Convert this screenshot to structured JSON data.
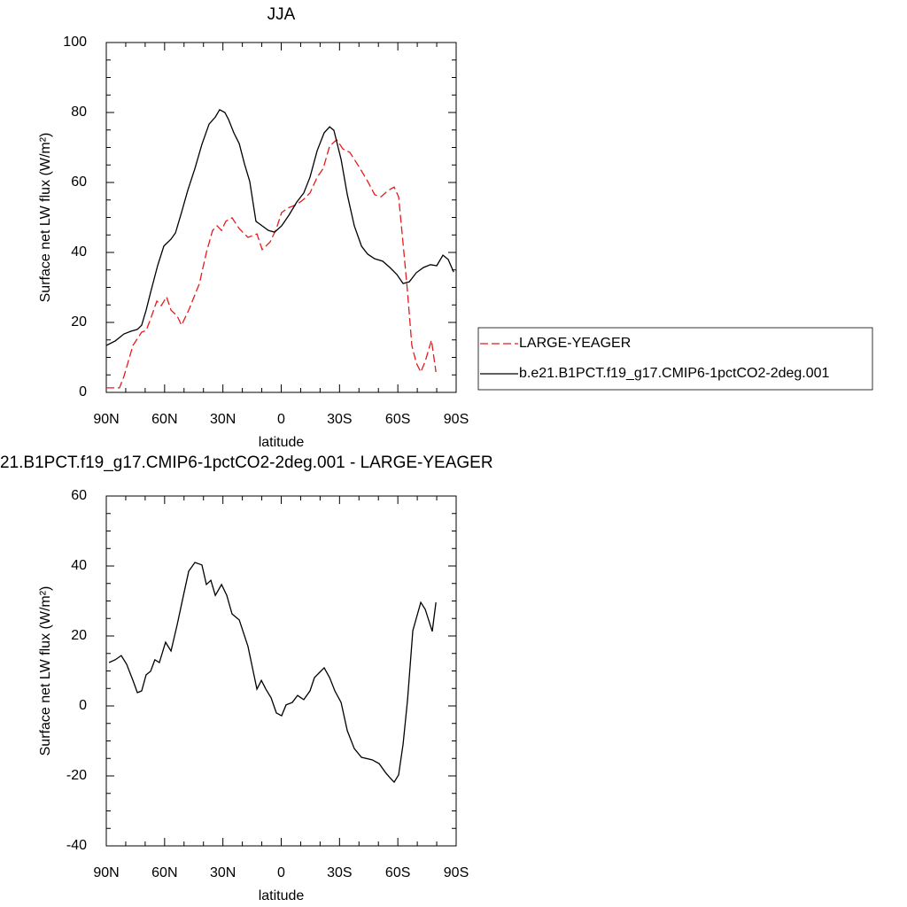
{
  "chart_data": [
    {
      "type": "line",
      "title": "JJA",
      "xlabel": "latitude",
      "ylabel": "Surface net LW flux (W/m²)",
      "xlim": [
        90,
        -90
      ],
      "xticks": [
        {
          "value": 90,
          "label": "90N"
        },
        {
          "value": 60,
          "label": "60N"
        },
        {
          "value": 30,
          "label": "30N"
        },
        0,
        {
          "value": -30,
          "label": "30S"
        },
        {
          "value": -60,
          "label": "60S"
        },
        {
          "value": -90,
          "label": "90S"
        }
      ],
      "ylim": [
        0,
        100
      ],
      "yticks": [
        0,
        20,
        40,
        60,
        80,
        100
      ],
      "legend": "right",
      "series": [
        {
          "name": "LARGE-YEAGER",
          "color": "#e41a1c",
          "linestyle": "dashed",
          "x": [
            90,
            83.2,
            80.9,
            76.3,
            71.8,
            69.5,
            67.2,
            64,
            61.7,
            59,
            56.7,
            53.5,
            51.3,
            47.6,
            42.1,
            38.5,
            35.3,
            33,
            30.7,
            28.5,
            25.3,
            21.6,
            17.1,
            12.5,
            9.8,
            5.7,
            2.5,
            -0.2,
            -3.4,
            -8,
            -11.6,
            -14.8,
            -18.5,
            -21.6,
            -24.9,
            -28.5,
            -31.7,
            -35.3,
            -39.9,
            -44.5,
            -48.1,
            -51.3,
            -55,
            -58.1,
            -60.4,
            -62.7,
            -65,
            -67.2,
            -69.5,
            -71.8,
            -74.1,
            -77.3,
            -79.6
          ],
          "values": [
            1.3,
            1.3,
            4.6,
            13.4,
            17.2,
            17.7,
            21,
            26.1,
            24.8,
            27.3,
            23.5,
            21.8,
            19.2,
            23.5,
            31.1,
            40,
            46.3,
            47.6,
            46.3,
            48.9,
            49.9,
            46.8,
            44.3,
            45.3,
            40.8,
            43,
            46.8,
            51.4,
            52.7,
            53.7,
            55.2,
            57,
            61.5,
            64,
            70.4,
            72.2,
            69.6,
            68.6,
            64.6,
            60.3,
            56.5,
            55.9,
            57.7,
            58.7,
            55.9,
            42.5,
            28.6,
            13.4,
            8.4,
            5.8,
            8.9,
            14.9,
            5.8
          ]
        },
        {
          "name": "b.e21.B1PCT.f19_g17.CMIP6-1pctCO2-2deg.001",
          "color": "#000000",
          "linestyle": "solid",
          "x": [
            90,
            85.4,
            80.9,
            77.2,
            74,
            71.8,
            69.5,
            67.2,
            63.6,
            60.4,
            56.7,
            54.4,
            51.3,
            48.1,
            44.4,
            40.8,
            37.1,
            33.9,
            31.7,
            29,
            27.1,
            24.4,
            21.6,
            18.9,
            16.2,
            13,
            9.8,
            6.6,
            3.4,
            -0.2,
            -3.9,
            -8,
            -11.6,
            -14.8,
            -18.5,
            -22.1,
            -24.9,
            -27.1,
            -30.8,
            -34,
            -37.6,
            -41.3,
            -44.5,
            -48.1,
            -52.2,
            -55.9,
            -59.5,
            -62.7,
            -65.9,
            -69.5,
            -73.2,
            -76.8,
            -80,
            -83.2,
            -85.9,
            -88.7
          ],
          "values": [
            13.4,
            14.7,
            16.7,
            17.5,
            18,
            19.2,
            23.5,
            28.6,
            36.2,
            41.8,
            43.8,
            45.6,
            51.4,
            57.7,
            64,
            70.9,
            76.7,
            78.7,
            80.8,
            80,
            78,
            74.2,
            71.1,
            65.3,
            60.3,
            48.9,
            47.6,
            46.3,
            45.8,
            47.6,
            50.6,
            54.4,
            57,
            61.5,
            69.1,
            74.2,
            75.9,
            74.9,
            66.6,
            56.5,
            47.6,
            41.8,
            39.5,
            38.2,
            37.5,
            35.7,
            33.7,
            31.1,
            31.6,
            34.2,
            35.7,
            36.5,
            36.2,
            39.2,
            38,
            34.4
          ]
        }
      ]
    },
    {
      "type": "line",
      "title": "21.B1PCT.f19_g17.CMIP6-1pctCO2-2deg.001 - LARGE-YEAGER",
      "xlabel": "latitude",
      "ylabel": "Surface net LW flux (W/m²)",
      "xlim": [
        90,
        -90
      ],
      "xticks": [
        {
          "value": 90,
          "label": "90N"
        },
        {
          "value": 60,
          "label": "60N"
        },
        {
          "value": 30,
          "label": "30N"
        },
        0,
        {
          "value": -30,
          "label": "30S"
        },
        {
          "value": -60,
          "label": "60S"
        },
        {
          "value": -90,
          "label": "90S"
        }
      ],
      "ylim": [
        -40,
        60
      ],
      "yticks": [
        -40,
        -20,
        0,
        20,
        40,
        60
      ],
      "series": [
        {
          "color": "#000000",
          "linestyle": "solid",
          "x": [
            88.6,
            85.4,
            82.3,
            79.5,
            76.3,
            74,
            71.8,
            69.5,
            67.2,
            65,
            62.7,
            59.5,
            56.7,
            53.5,
            50.3,
            47.6,
            44.4,
            40.8,
            38.5,
            36.2,
            33.9,
            30.7,
            28,
            25.3,
            21.6,
            17.1,
            12.5,
            10.2,
            7.9,
            5.2,
            2.5,
            -0.2,
            -2.5,
            -5.7,
            -8.4,
            -11.6,
            -14.8,
            -17.1,
            -19.4,
            -22.1,
            -24.9,
            -27.6,
            -30.8,
            -34,
            -37.6,
            -41.3,
            -46.8,
            -50.4,
            -53.6,
            -55.9,
            -58.1,
            -60.4,
            -62.7,
            -65,
            -67.7,
            -71.8,
            -74.1,
            -77.7,
            -79.6
          ],
          "values": [
            12.4,
            13.2,
            14.4,
            11.9,
            7.3,
            3.8,
            4.3,
            8.9,
            9.9,
            13.2,
            12.4,
            18.2,
            15.7,
            23.3,
            31.6,
            38.5,
            41,
            40.3,
            34.7,
            35.9,
            31.6,
            34.7,
            31.6,
            26.3,
            24.6,
            17,
            4.8,
            7.3,
            4.8,
            2.3,
            -2,
            -2.8,
            0.3,
            1,
            3,
            1.8,
            4.3,
            8.1,
            9.4,
            10.9,
            8.1,
            4.3,
            1,
            -7.1,
            -12.2,
            -14.7,
            -15.4,
            -16.5,
            -19,
            -20.5,
            -21.8,
            -19.7,
            -10.9,
            1.8,
            21.5,
            29.6,
            27.6,
            21.3,
            29.6
          ]
        }
      ]
    }
  ]
}
